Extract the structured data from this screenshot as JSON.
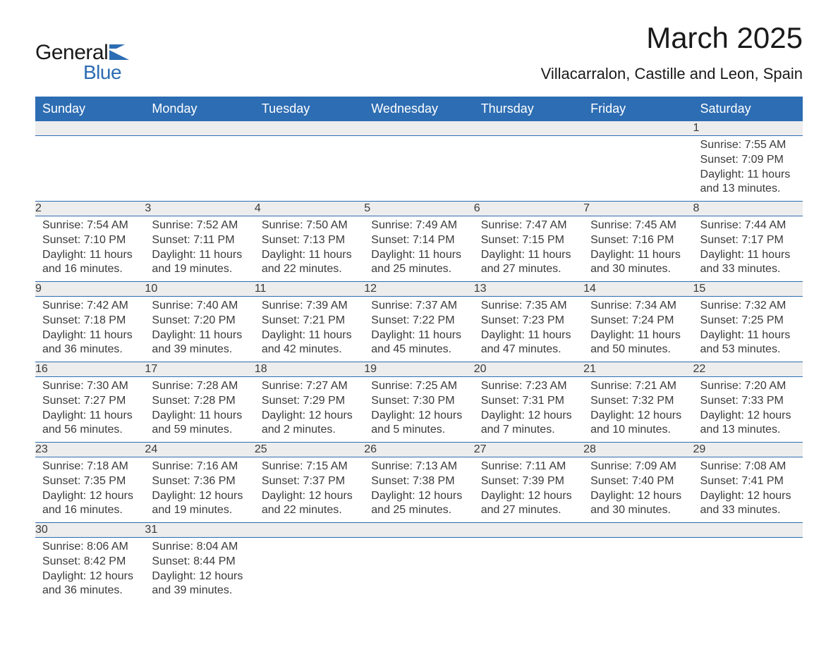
{
  "logo": {
    "word1": "General",
    "word2": "Blue"
  },
  "title": "March 2025",
  "location": "Villacarralon, Castille and Leon, Spain",
  "colors": {
    "header_bg": "#2d6db3",
    "header_text": "#ffffff",
    "daynum_bg": "#ededed",
    "text": "#3a3a3a",
    "page_bg": "#ffffff"
  },
  "dayHeaders": [
    "Sunday",
    "Monday",
    "Tuesday",
    "Wednesday",
    "Thursday",
    "Friday",
    "Saturday"
  ],
  "labels": {
    "sunrise": "Sunrise:",
    "sunset": "Sunset:",
    "daylight": "Daylight:"
  },
  "weeks": [
    [
      null,
      null,
      null,
      null,
      null,
      null,
      {
        "n": "1",
        "sunrise": "7:55 AM",
        "sunset": "7:09 PM",
        "daylight": "11 hours and 13 minutes."
      }
    ],
    [
      {
        "n": "2",
        "sunrise": "7:54 AM",
        "sunset": "7:10 PM",
        "daylight": "11 hours and 16 minutes."
      },
      {
        "n": "3",
        "sunrise": "7:52 AM",
        "sunset": "7:11 PM",
        "daylight": "11 hours and 19 minutes."
      },
      {
        "n": "4",
        "sunrise": "7:50 AM",
        "sunset": "7:13 PM",
        "daylight": "11 hours and 22 minutes."
      },
      {
        "n": "5",
        "sunrise": "7:49 AM",
        "sunset": "7:14 PM",
        "daylight": "11 hours and 25 minutes."
      },
      {
        "n": "6",
        "sunrise": "7:47 AM",
        "sunset": "7:15 PM",
        "daylight": "11 hours and 27 minutes."
      },
      {
        "n": "7",
        "sunrise": "7:45 AM",
        "sunset": "7:16 PM",
        "daylight": "11 hours and 30 minutes."
      },
      {
        "n": "8",
        "sunrise": "7:44 AM",
        "sunset": "7:17 PM",
        "daylight": "11 hours and 33 minutes."
      }
    ],
    [
      {
        "n": "9",
        "sunrise": "7:42 AM",
        "sunset": "7:18 PM",
        "daylight": "11 hours and 36 minutes."
      },
      {
        "n": "10",
        "sunrise": "7:40 AM",
        "sunset": "7:20 PM",
        "daylight": "11 hours and 39 minutes."
      },
      {
        "n": "11",
        "sunrise": "7:39 AM",
        "sunset": "7:21 PM",
        "daylight": "11 hours and 42 minutes."
      },
      {
        "n": "12",
        "sunrise": "7:37 AM",
        "sunset": "7:22 PM",
        "daylight": "11 hours and 45 minutes."
      },
      {
        "n": "13",
        "sunrise": "7:35 AM",
        "sunset": "7:23 PM",
        "daylight": "11 hours and 47 minutes."
      },
      {
        "n": "14",
        "sunrise": "7:34 AM",
        "sunset": "7:24 PM",
        "daylight": "11 hours and 50 minutes."
      },
      {
        "n": "15",
        "sunrise": "7:32 AM",
        "sunset": "7:25 PM",
        "daylight": "11 hours and 53 minutes."
      }
    ],
    [
      {
        "n": "16",
        "sunrise": "7:30 AM",
        "sunset": "7:27 PM",
        "daylight": "11 hours and 56 minutes."
      },
      {
        "n": "17",
        "sunrise": "7:28 AM",
        "sunset": "7:28 PM",
        "daylight": "11 hours and 59 minutes."
      },
      {
        "n": "18",
        "sunrise": "7:27 AM",
        "sunset": "7:29 PM",
        "daylight": "12 hours and 2 minutes."
      },
      {
        "n": "19",
        "sunrise": "7:25 AM",
        "sunset": "7:30 PM",
        "daylight": "12 hours and 5 minutes."
      },
      {
        "n": "20",
        "sunrise": "7:23 AM",
        "sunset": "7:31 PM",
        "daylight": "12 hours and 7 minutes."
      },
      {
        "n": "21",
        "sunrise": "7:21 AM",
        "sunset": "7:32 PM",
        "daylight": "12 hours and 10 minutes."
      },
      {
        "n": "22",
        "sunrise": "7:20 AM",
        "sunset": "7:33 PM",
        "daylight": "12 hours and 13 minutes."
      }
    ],
    [
      {
        "n": "23",
        "sunrise": "7:18 AM",
        "sunset": "7:35 PM",
        "daylight": "12 hours and 16 minutes."
      },
      {
        "n": "24",
        "sunrise": "7:16 AM",
        "sunset": "7:36 PM",
        "daylight": "12 hours and 19 minutes."
      },
      {
        "n": "25",
        "sunrise": "7:15 AM",
        "sunset": "7:37 PM",
        "daylight": "12 hours and 22 minutes."
      },
      {
        "n": "26",
        "sunrise": "7:13 AM",
        "sunset": "7:38 PM",
        "daylight": "12 hours and 25 minutes."
      },
      {
        "n": "27",
        "sunrise": "7:11 AM",
        "sunset": "7:39 PM",
        "daylight": "12 hours and 27 minutes."
      },
      {
        "n": "28",
        "sunrise": "7:09 AM",
        "sunset": "7:40 PM",
        "daylight": "12 hours and 30 minutes."
      },
      {
        "n": "29",
        "sunrise": "7:08 AM",
        "sunset": "7:41 PM",
        "daylight": "12 hours and 33 minutes."
      }
    ],
    [
      {
        "n": "30",
        "sunrise": "8:06 AM",
        "sunset": "8:42 PM",
        "daylight": "12 hours and 36 minutes."
      },
      {
        "n": "31",
        "sunrise": "8:04 AM",
        "sunset": "8:44 PM",
        "daylight": "12 hours and 39 minutes."
      },
      null,
      null,
      null,
      null,
      null
    ]
  ]
}
